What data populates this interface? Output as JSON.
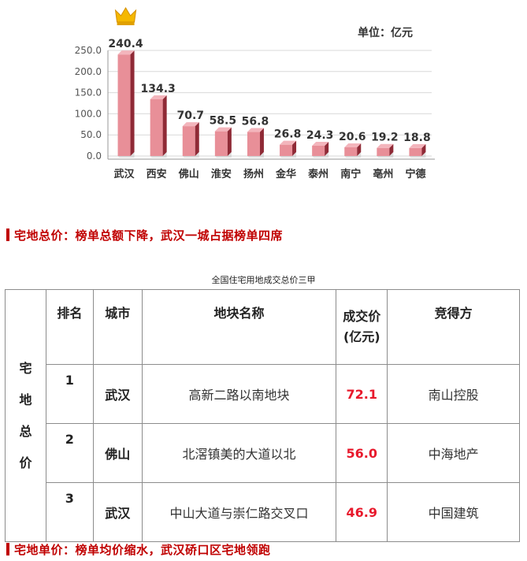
{
  "chart_data": {
    "type": "bar",
    "unit_label": "单位：亿元",
    "categories": [
      "武汉",
      "西安",
      "佛山",
      "淮安",
      "扬州",
      "金华",
      "泰州",
      "南宁",
      "亳州",
      "宁德"
    ],
    "values": [
      240.4,
      134.3,
      70.7,
      58.5,
      56.8,
      26.8,
      24.3,
      20.6,
      19.2,
      18.8
    ],
    "value_labels": [
      "240.4",
      "134.3",
      "70.7",
      "58.5",
      "56.8",
      "26.8",
      "24.3",
      "20.6",
      "19.2",
      "18.8"
    ],
    "yticks": [
      "250.0",
      "200.0",
      "150.0",
      "100.0",
      "50.0",
      "0.0"
    ],
    "ylim": [
      0,
      250
    ],
    "colors": {
      "bar_front": "#e88f98",
      "bar_side": "#8f2a36",
      "bar_top": "#f3b5bc",
      "crown": "#f5b800"
    },
    "top_marker_icon": "crown-icon"
  },
  "section1": {
    "heading": "宅地总价：榜单总额下降，武汉一城占据榜单四席"
  },
  "table": {
    "caption": "全国住宅用地成交总价三甲",
    "row_header_chars": [
      "宅",
      "地",
      "总",
      "价"
    ],
    "headers": {
      "rank": "排名",
      "city": "城市",
      "plot": "地块名称",
      "price_line1": "成交价",
      "price_line2": "(亿元)",
      "buyer": "竞得方"
    },
    "rows": [
      {
        "rank": "1",
        "city": "武汉",
        "plot": "高新二路以南地块",
        "price": "72.1",
        "buyer": "南山控股"
      },
      {
        "rank": "2",
        "city": "佛山",
        "plot": "北滘镇美的大道以北",
        "price": "56.0",
        "buyer": "中海地产"
      },
      {
        "rank": "3",
        "city": "武汉",
        "plot": "中山大道与崇仁路交叉口",
        "price": "46.9",
        "buyer": "中国建筑"
      }
    ]
  },
  "section2": {
    "heading": "宅地单价：榜单均价缩水，武汉硚口区宅地领跑"
  }
}
